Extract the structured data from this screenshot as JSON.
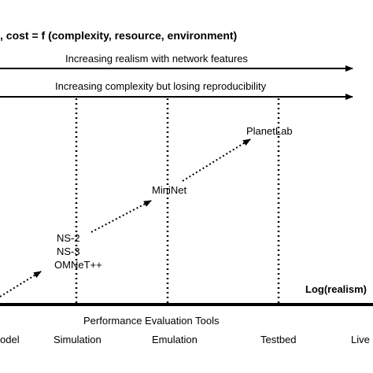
{
  "heading": ", cost = f (complexity, resource, environment)",
  "arrows": {
    "realism": "Increasing realism with network features",
    "complexity": "Increasing complexity but losing reproducibility"
  },
  "tools": {
    "ns": [
      "NS-2",
      "NS-3",
      "OMNeT++"
    ],
    "mininet": "MiniNet",
    "planetlab": "PlanetLab"
  },
  "axis": {
    "label": "Log(realism)",
    "caption": "Performance Evaluation Tools",
    "categories": [
      "odel",
      "Simulation",
      "Emulation",
      "Testbed",
      "Live"
    ]
  }
}
